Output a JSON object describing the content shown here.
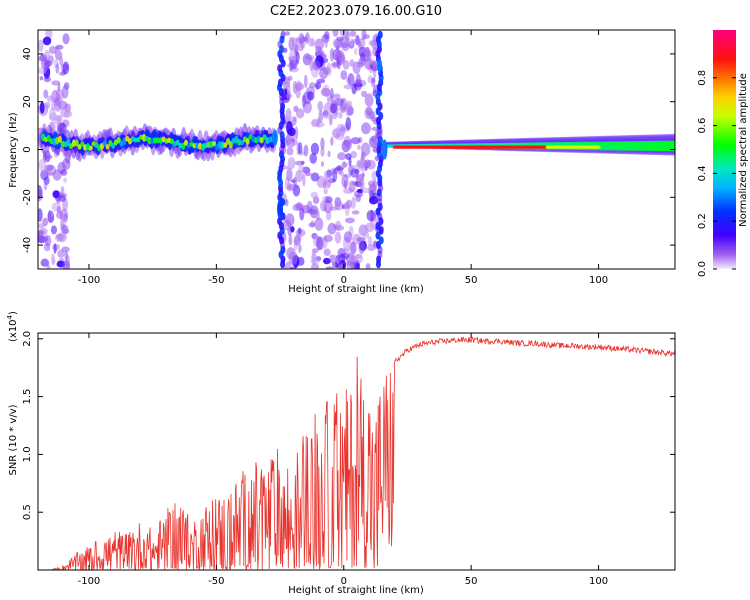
{
  "title": "C2E2.2023.079.16.00.G10",
  "colors": {
    "snr_line": "#e8342e",
    "axis": "#000000"
  },
  "chart_data": [
    {
      "type": "heatmap",
      "xlabel": "Height of straight line (km)",
      "ylabel": "Frequency (Hz)",
      "xlim": [
        -120,
        130
      ],
      "ylim": [
        -50,
        50
      ],
      "xticks": [
        -100,
        -50,
        0,
        50,
        100
      ],
      "yticks": [
        -40,
        -20,
        0,
        20,
        40
      ],
      "colorbar": {
        "label": "Normalized spectral amplitude",
        "range": [
          0.0,
          1.0
        ],
        "ticks": [
          "0.0",
          "0.2",
          "0.4",
          "0.6",
          "0.8"
        ],
        "colormap": [
          "#f3eafc",
          "#8a2be2",
          "#0000ff",
          "#00c8ff",
          "#00ff00",
          "#ffff00",
          "#ff8000",
          "#ff0000",
          "#ff00a0"
        ]
      },
      "features": [
        {
          "name": "noise-band-left",
          "x_range": [
            -120,
            -108
          ],
          "y_range": [
            -50,
            50
          ],
          "level": 0.1
        },
        {
          "name": "signal-trace-left",
          "x_range": [
            -118,
            -27
          ],
          "y_center": 3,
          "level": 0.6
        },
        {
          "name": "noise-band-center",
          "x_range": [
            -24,
            14
          ],
          "y_range": [
            -50,
            50
          ],
          "level": 0.2
        },
        {
          "name": "signal-trace-right",
          "x_range": [
            17,
            130
          ],
          "y_center": 1,
          "level": 0.85
        }
      ]
    },
    {
      "type": "line",
      "xlabel": "Height of straight line (km)",
      "ylabel": "SNR (10 * v/v)",
      "y_multiplier": "(x10",
      "y_multiplier_exp": "4",
      "y_multiplier_close": ")",
      "xlim": [
        -120,
        130
      ],
      "ylim": [
        0,
        2.05
      ],
      "xticks": [
        -100,
        -50,
        0,
        50,
        100
      ],
      "yticks": [
        0.5,
        1.0,
        1.5,
        2.0
      ],
      "series": [
        {
          "x": [
            -120,
            -115,
            -110,
            -105,
            -100,
            -95,
            -90,
            -85,
            -80,
            -75,
            -70,
            -65,
            -60,
            -55,
            -50,
            -45,
            -40,
            -35,
            -30,
            -25,
            -20,
            -15,
            -10,
            -5,
            0,
            5,
            10,
            12,
            15,
            20,
            25,
            30,
            35,
            40,
            45,
            50,
            55,
            60,
            65,
            70,
            75,
            80,
            85,
            90,
            95,
            100,
            105,
            110,
            115,
            120,
            125,
            130
          ],
          "y": [
            0.0,
            0.0,
            0.03,
            0.1,
            0.15,
            0.2,
            0.25,
            0.22,
            0.3,
            0.25,
            0.35,
            0.45,
            0.3,
            0.4,
            0.45,
            0.5,
            0.6,
            0.65,
            0.7,
            0.75,
            0.65,
            0.9,
            1.0,
            1.1,
            1.2,
            1.35,
            1.45,
            0.9,
            1.55,
            1.8,
            1.9,
            1.95,
            1.97,
            1.98,
            1.99,
            1.99,
            1.98,
            1.98,
            1.97,
            1.96,
            1.96,
            1.95,
            1.94,
            1.94,
            1.93,
            1.93,
            1.92,
            1.91,
            1.9,
            1.89,
            1.88,
            1.87
          ]
        }
      ]
    }
  ]
}
